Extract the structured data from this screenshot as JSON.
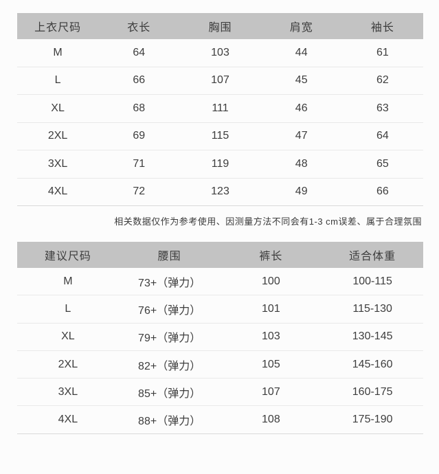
{
  "colors": {
    "page_bg": "#fcfcfc",
    "header_bg": "#c3c3c3",
    "text": "#3d3d3d",
    "row_line": "#e9e9e9",
    "table_end_line": "#dadada"
  },
  "top_table": {
    "headers": [
      "上衣尺码",
      "衣长",
      "胸围",
      "肩宽",
      "袖长"
    ],
    "rows": [
      [
        "M",
        "64",
        "103",
        "44",
        "61"
      ],
      [
        "L",
        "66",
        "107",
        "45",
        "62"
      ],
      [
        "XL",
        "68",
        "111",
        "46",
        "63"
      ],
      [
        "2XL",
        "69",
        "115",
        "47",
        "64"
      ],
      [
        "3XL",
        "71",
        "119",
        "48",
        "65"
      ],
      [
        "4XL",
        "72",
        "123",
        "49",
        "66"
      ]
    ]
  },
  "note": "相关数据仅作为参考使用、因测量方法不同会有1-3 cm误差、属于合理氛围",
  "bottom_table": {
    "headers": [
      "建议尺码",
      "腰围",
      "裤长",
      "适合体重"
    ],
    "rows": [
      [
        "M",
        "73+（弹力）",
        "100",
        "100-115"
      ],
      [
        "L",
        "76+（弹力）",
        "101",
        "115-130"
      ],
      [
        "XL",
        "79+（弹力）",
        "103",
        "130-145"
      ],
      [
        "2XL",
        "82+（弹力）",
        "105",
        "145-160"
      ],
      [
        "3XL",
        "85+（弹力）",
        "107",
        "160-175"
      ],
      [
        "4XL",
        "88+（弹力）",
        "108",
        "175-190"
      ]
    ]
  }
}
